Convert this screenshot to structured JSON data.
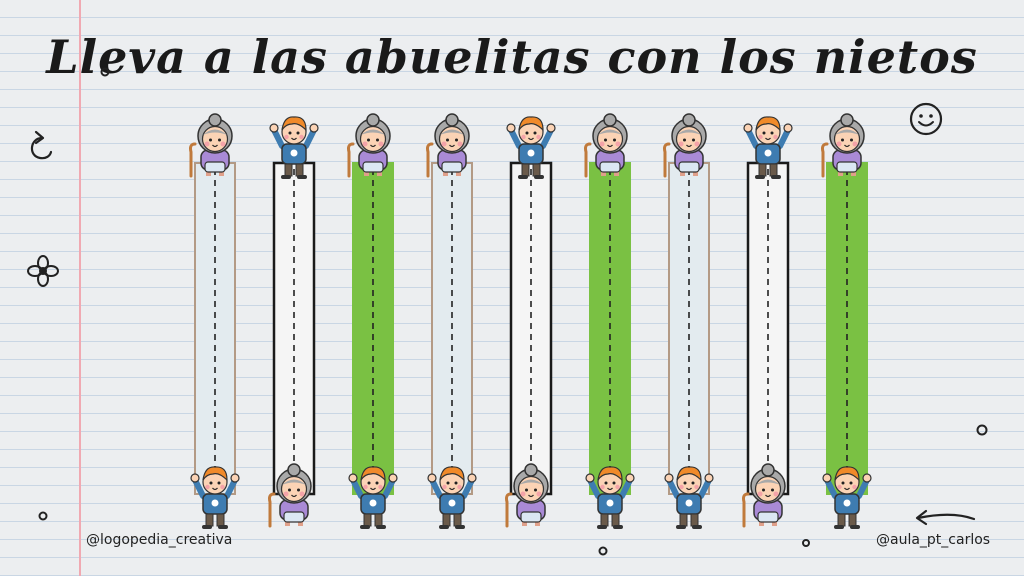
{
  "title": "Lleva a las abuelitas con los nietos",
  "credits": {
    "left": "@logopedia_creativa",
    "right": "@aula_pt_carlos"
  },
  "icons": [
    "swirl-arrow-icon",
    "flower-icon",
    "smiley-icon",
    "arrow-icon",
    "dot-icon"
  ],
  "colors": {
    "light_blue": "#e3ebef",
    "green": "#7ac143",
    "white": "#f5f5f5",
    "tan_border": "#b39a85",
    "black_border": "#1a1a1a"
  },
  "lanes": [
    {
      "top": "grandma",
      "bottom": "grandchild",
      "fill": "light_blue",
      "border": "tan_border"
    },
    {
      "top": "grandchild",
      "bottom": "grandma",
      "fill": "white",
      "border": "black_border"
    },
    {
      "top": "grandma",
      "bottom": "grandchild",
      "fill": "green",
      "border": "green"
    },
    {
      "top": "grandma",
      "bottom": "grandchild",
      "fill": "light_blue",
      "border": "tan_border"
    },
    {
      "top": "grandchild",
      "bottom": "grandma",
      "fill": "white",
      "border": "black_border"
    },
    {
      "top": "grandma",
      "bottom": "grandchild",
      "fill": "green",
      "border": "green"
    },
    {
      "top": "grandma",
      "bottom": "grandchild",
      "fill": "light_blue",
      "border": "tan_border"
    },
    {
      "top": "grandchild",
      "bottom": "grandma",
      "fill": "white",
      "border": "black_border"
    },
    {
      "top": "grandma",
      "bottom": "grandchild",
      "fill": "green",
      "border": "green"
    }
  ]
}
